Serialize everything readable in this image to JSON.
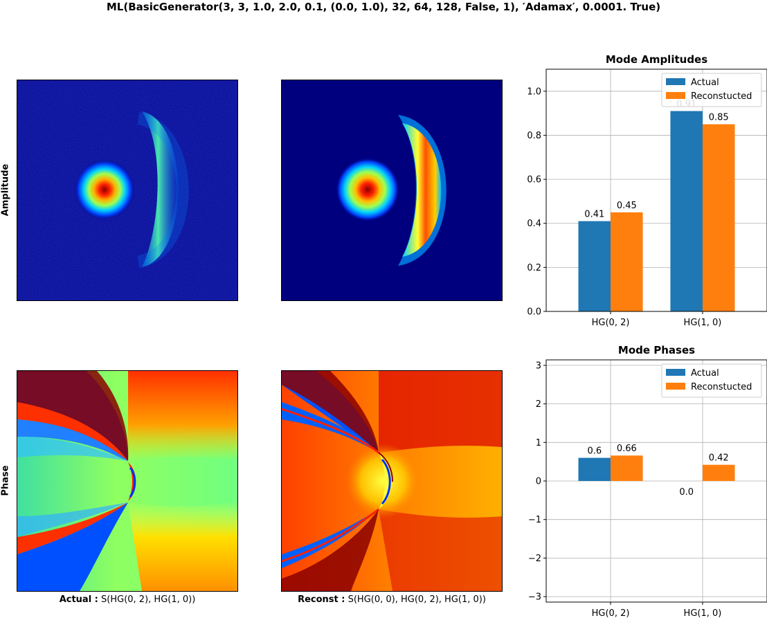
{
  "figure": {
    "title": "ML(BasicGenerator(3, 3, 1.0, 2.0, 0.1, (0.0, 1.0), 32, 64, 128, False, 1), ′Adamax′, 0.0001. True)",
    "row_labels": {
      "amplitude": "Amplitude",
      "phase": "Phase"
    },
    "captions": {
      "actual": {
        "label": "Actual :",
        "text": "S(HG(0, 2), HG(1, 0))"
      },
      "reconst": {
        "label": "Reconst :",
        "text": "S(HG(0, 0), HG(0, 2), HG(1, 0))"
      }
    }
  },
  "colors": {
    "actual": "#1f77b4",
    "reconstructed": "#ff7f0e",
    "grid": "#b0b0b0",
    "jet_low": "#00007f"
  },
  "chart_data": [
    {
      "type": "bar",
      "title": "Mode Amplitudes",
      "categories": [
        "HG(0, 2)",
        "HG(1, 0)"
      ],
      "series": [
        {
          "name": "Actual",
          "values": [
            0.41,
            0.91
          ],
          "labels": [
            "0.41",
            "0.91"
          ]
        },
        {
          "name": "Reconstucted",
          "values": [
            0.45,
            0.85
          ],
          "labels": [
            "0.45",
            "0.85"
          ]
        }
      ],
      "ylim": [
        0,
        1.1
      ],
      "yticks": [
        0.0,
        0.2,
        0.4,
        0.6,
        0.8,
        1.0
      ],
      "ytick_labels": [
        "0.0",
        "0.2",
        "0.4",
        "0.6",
        "0.8",
        "1.0"
      ],
      "grid": true,
      "legend": "upper-right"
    },
    {
      "type": "bar",
      "title": "Mode Phases",
      "categories": [
        "HG(0, 2)",
        "HG(1, 0)"
      ],
      "series": [
        {
          "name": "Actual",
          "values": [
            0.6,
            0.0
          ],
          "labels": [
            "0.6",
            "0.0"
          ]
        },
        {
          "name": "Reconstucted",
          "values": [
            0.66,
            0.42
          ],
          "labels": [
            "0.66",
            "0.42"
          ]
        }
      ],
      "ylim": [
        -3.14159,
        3.14159
      ],
      "yticks": [
        -3,
        -2,
        -1,
        0,
        1,
        2,
        3
      ],
      "ytick_labels": [
        "−3",
        "−2",
        "−1",
        "0",
        "1",
        "2",
        "3"
      ],
      "grid": true,
      "legend": "upper-right"
    }
  ]
}
